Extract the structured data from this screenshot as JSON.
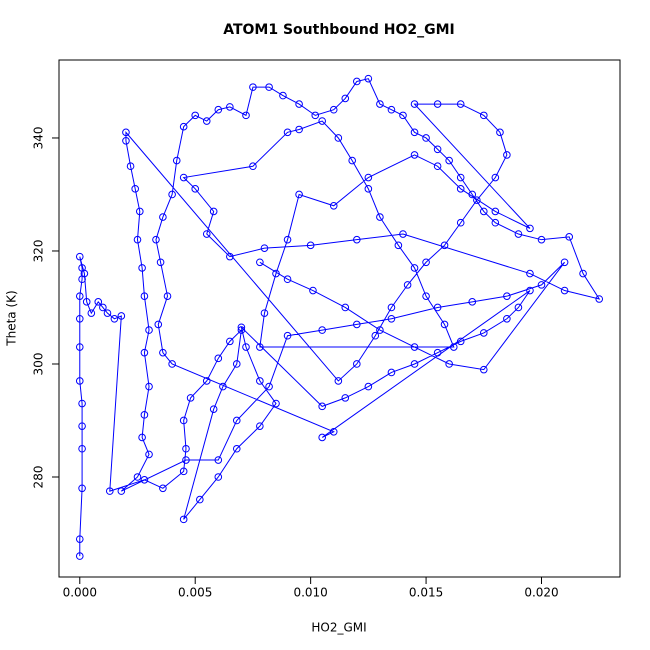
{
  "chart_data": {
    "type": "line",
    "markers": true,
    "title": "ATOM1 Southbound HO2_GMI",
    "xlabel": "HO2_GMI",
    "ylabel": "Theta (K)",
    "color": "#0000ff",
    "xlim": [
      -0.0009,
      0.0234
    ],
    "ylim": [
      262.3,
      353.8
    ],
    "xticks": [
      {
        "value": 0,
        "label": "0.000"
      },
      {
        "value": 0.005,
        "label": "0.005"
      },
      {
        "value": 0.01,
        "label": "0.010"
      },
      {
        "value": 0.015,
        "label": "0.015"
      },
      {
        "value": 0.02,
        "label": "0.020"
      }
    ],
    "yticks": [
      280,
      300,
      320,
      340
    ],
    "x": [
      0,
      0,
      0.0001,
      0.0001,
      0.0001,
      0.0001,
      0,
      0,
      0,
      0,
      0.0001,
      0.0001,
      0,
      0.0002,
      0.0003,
      0.0005,
      0.0008,
      0.001,
      0.0012,
      0.0015,
      0.0018,
      0.0013,
      0.0028,
      0.0036,
      0.0045,
      0.0046,
      0.0045,
      0.0048,
      0.0055,
      0.006,
      0.0065,
      0.007,
      0.0068,
      0.0062,
      0.0058,
      0.0045,
      0.0052,
      0.006,
      0.0068,
      0.0078,
      0.0085,
      0.0078,
      0.0072,
      0.007,
      0.0105,
      0.0115,
      0.0125,
      0.0135,
      0.0145,
      0.0155,
      0.0165,
      0.0175,
      0.0185,
      0.019,
      0.0195,
      0.0105,
      0.011,
      0.004,
      0.0036,
      0.0034,
      0.0038,
      0.0035,
      0.0033,
      0.0036,
      0.004,
      0.0042,
      0.0045,
      0.005,
      0.0055,
      0.006,
      0.0065,
      0.0072,
      0.0075,
      0.0082,
      0.0088,
      0.0095,
      0.0102,
      0.011,
      0.0115,
      0.012,
      0.0125,
      0.013,
      0.0135,
      0.014,
      0.0145,
      0.015,
      0.0155,
      0.016,
      0.0165,
      0.017,
      0.0175,
      0.018,
      0.019,
      0.02,
      0.0212,
      0.0218,
      0.0225,
      0.021,
      0.0195,
      0.014,
      0.012,
      0.01,
      0.008,
      0.0065,
      0.0055,
      0.0058,
      0.005,
      0.0045,
      0.0075,
      0.009,
      0.0095,
      0.0105,
      0.0112,
      0.0118,
      0.0125,
      0.013,
      0.0138,
      0.0145,
      0.015,
      0.0158,
      0.0162,
      0.0078,
      0.008,
      0.0085,
      0.009,
      0.0095,
      0.011,
      0.0125,
      0.0145,
      0.0155,
      0.0165,
      0.018,
      0.0195,
      0.0145,
      0.0155,
      0.0165,
      0.0175,
      0.0182,
      0.0185,
      0.018,
      0.0172,
      0.0165,
      0.0158,
      0.015,
      0.0142,
      0.0135,
      0.0128,
      0.012,
      0.0112,
      0.002,
      0.002,
      0.0022,
      0.0024,
      0.0026,
      0.0025,
      0.0027,
      0.0028,
      0.003,
      0.0028,
      0.003,
      0.0028,
      0.0027,
      0.003,
      0.0025,
      0.0018,
      0.0046,
      0.006,
      0.0068,
      0.0082,
      0.009,
      0.0105,
      0.012,
      0.0135,
      0.0155,
      0.017,
      0.0185,
      0.02,
      0.021,
      0.0175,
      0.016,
      0.0145,
      0.013,
      0.0115,
      0.0101,
      0.009,
      0.0078
    ],
    "values": [
      266,
      269,
      278,
      285,
      289,
      293,
      297,
      303,
      308,
      312,
      315,
      317,
      319,
      316,
      311,
      309,
      311,
      310,
      309,
      308,
      308.5,
      277.5,
      279.5,
      278,
      281,
      285,
      290,
      294,
      297,
      301,
      304,
      306,
      300,
      296,
      292,
      272.5,
      276,
      280,
      285,
      289,
      293,
      297,
      303,
      306.5,
      292.5,
      294,
      296,
      298.5,
      300,
      302,
      304,
      305.5,
      308,
      310,
      313,
      287,
      288,
      300,
      302,
      307,
      312,
      318,
      322,
      326,
      330,
      336,
      342,
      344,
      343,
      345,
      345.5,
      344,
      349,
      349,
      347.5,
      346,
      344,
      345,
      347,
      350,
      350.5,
      346,
      345,
      344,
      341,
      340,
      338,
      336,
      333,
      330,
      327,
      325,
      323,
      322,
      322.5,
      316,
      311.5,
      313,
      316,
      323,
      322,
      321,
      320.5,
      319,
      323,
      327,
      331,
      333,
      335,
      341,
      341.5,
      343,
      340,
      336,
      331,
      326,
      321,
      317,
      312,
      307,
      303,
      303,
      309,
      316,
      322,
      330,
      328,
      333,
      337,
      335,
      331,
      327,
      324,
      346,
      346,
      346,
      344,
      341,
      337,
      333,
      329,
      325,
      321,
      318,
      314,
      310,
      305,
      300,
      297,
      341,
      339.5,
      335,
      331,
      327,
      322,
      317,
      312,
      306,
      302,
      296,
      291,
      287,
      284,
      280,
      277.5,
      283,
      283,
      290,
      296,
      305,
      306,
      307,
      308,
      310,
      311,
      312,
      314,
      318,
      299,
      300,
      303,
      306,
      310,
      313,
      315,
      318
    ]
  }
}
